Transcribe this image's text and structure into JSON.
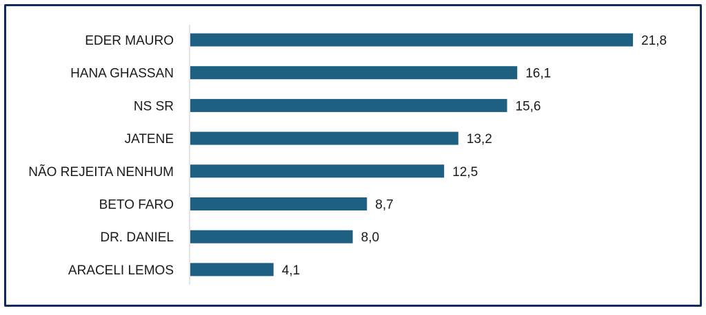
{
  "chart_data": {
    "type": "bar",
    "orientation": "horizontal",
    "categories": [
      "EDER MAURO",
      "HANA GHASSAN",
      "NS SR",
      "JATENE",
      "NÃO REJEITA NENHUM",
      "BETO FARO",
      "DR. DANIEL",
      "ARACELI LEMOS"
    ],
    "values": [
      21.8,
      16.1,
      15.6,
      13.2,
      12.5,
      8.7,
      8.0,
      4.1
    ],
    "value_labels": [
      "21,8",
      "16,1",
      "15,6",
      "13,2",
      "12,5",
      "8,7",
      "8,0",
      "4,1"
    ],
    "title": "",
    "xlabel": "",
    "ylabel": "",
    "xlim": [
      0,
      22
    ],
    "grid": false,
    "legend": "none",
    "colors": {
      "bar": "#1d6082",
      "axis": "#c8c8c8",
      "frame": "#0e2a63"
    }
  }
}
